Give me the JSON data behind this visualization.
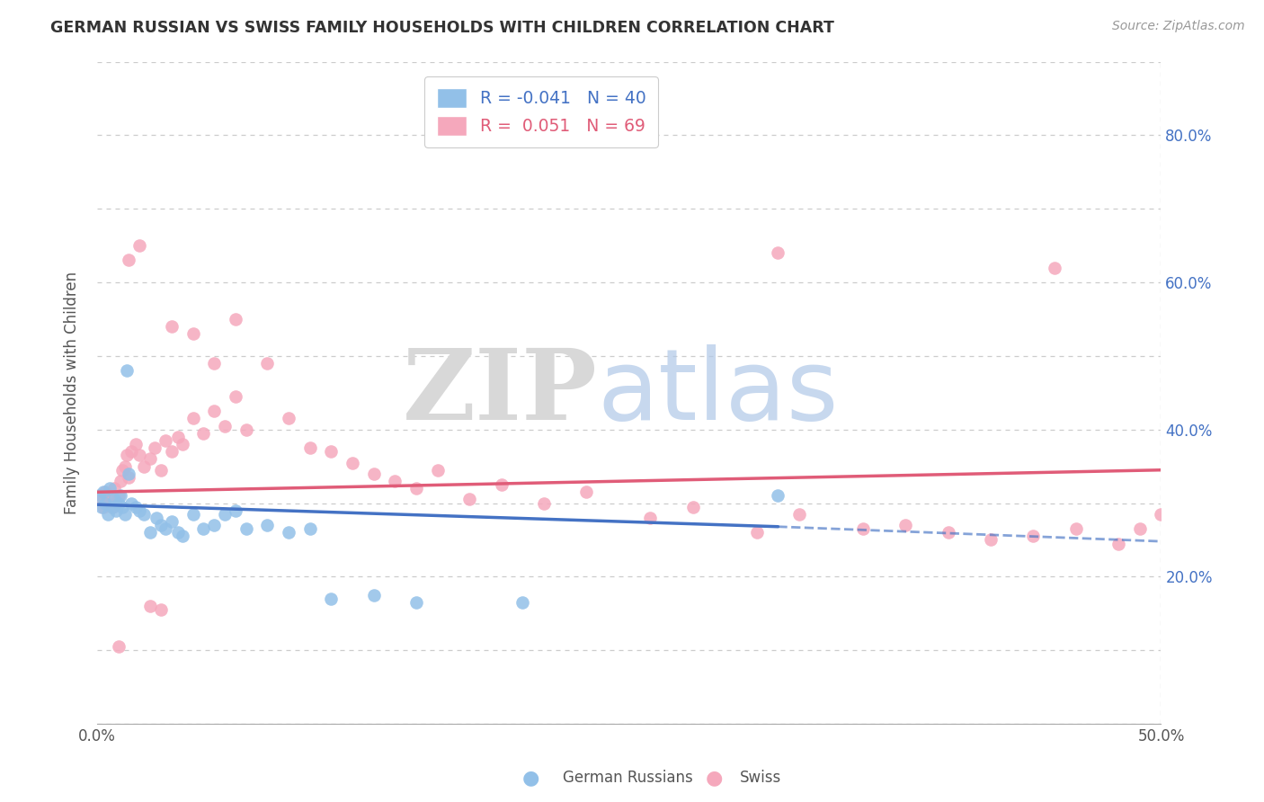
{
  "title": "GERMAN RUSSIAN VS SWISS FAMILY HOUSEHOLDS WITH CHILDREN CORRELATION CHART",
  "source": "Source: ZipAtlas.com",
  "ylabel": "Family Households with Children",
  "xlim": [
    0.0,
    0.5
  ],
  "ylim": [
    0.0,
    0.9
  ],
  "y_tick_positions": [
    0.0,
    0.1,
    0.2,
    0.3,
    0.4,
    0.5,
    0.6,
    0.7,
    0.8,
    0.9
  ],
  "y_tick_labels_right": [
    "",
    "",
    "20.0%",
    "",
    "40.0%",
    "",
    "60.0%",
    "",
    "80.0%",
    ""
  ],
  "x_tick_positions": [
    0.0,
    0.1,
    0.2,
    0.3,
    0.4,
    0.5
  ],
  "x_tick_labels": [
    "0.0%",
    "",
    "",
    "",
    "",
    "50.0%"
  ],
  "legend_r_blue": "-0.041",
  "legend_n_blue": "40",
  "legend_r_pink": "0.051",
  "legend_n_pink": "69",
  "blue_color": "#92c0e8",
  "pink_color": "#f5a8bc",
  "trend_blue_color": "#4472C4",
  "trend_pink_color": "#E05C78",
  "german_russian_x": [
    0.001,
    0.002,
    0.003,
    0.004,
    0.005,
    0.006,
    0.007,
    0.008,
    0.009,
    0.01,
    0.011,
    0.012,
    0.013,
    0.014,
    0.015,
    0.016,
    0.018,
    0.02,
    0.022,
    0.025,
    0.028,
    0.03,
    0.032,
    0.035,
    0.038,
    0.04,
    0.045,
    0.05,
    0.055,
    0.06,
    0.065,
    0.07,
    0.08,
    0.09,
    0.1,
    0.11,
    0.13,
    0.15,
    0.2,
    0.32
  ],
  "german_russian_y": [
    0.31,
    0.295,
    0.315,
    0.3,
    0.285,
    0.32,
    0.295,
    0.305,
    0.29,
    0.3,
    0.31,
    0.295,
    0.285,
    0.48,
    0.34,
    0.3,
    0.295,
    0.29,
    0.285,
    0.26,
    0.28,
    0.27,
    0.265,
    0.275,
    0.26,
    0.255,
    0.285,
    0.265,
    0.27,
    0.285,
    0.29,
    0.265,
    0.27,
    0.26,
    0.265,
    0.17,
    0.175,
    0.165,
    0.165,
    0.31
  ],
  "swiss_x": [
    0.001,
    0.002,
    0.003,
    0.004,
    0.005,
    0.006,
    0.007,
    0.008,
    0.009,
    0.01,
    0.011,
    0.012,
    0.013,
    0.014,
    0.015,
    0.016,
    0.018,
    0.02,
    0.022,
    0.025,
    0.027,
    0.03,
    0.032,
    0.035,
    0.038,
    0.04,
    0.045,
    0.05,
    0.055,
    0.06,
    0.065,
    0.07,
    0.08,
    0.09,
    0.1,
    0.11,
    0.12,
    0.13,
    0.14,
    0.15,
    0.16,
    0.175,
    0.19,
    0.21,
    0.23,
    0.26,
    0.28,
    0.31,
    0.33,
    0.36,
    0.38,
    0.4,
    0.42,
    0.44,
    0.46,
    0.48,
    0.49,
    0.5,
    0.03,
    0.025,
    0.02,
    0.015,
    0.01,
    0.035,
    0.045,
    0.055,
    0.065,
    0.32,
    0.45
  ],
  "swiss_y": [
    0.305,
    0.31,
    0.295,
    0.315,
    0.3,
    0.31,
    0.295,
    0.32,
    0.3,
    0.31,
    0.33,
    0.345,
    0.35,
    0.365,
    0.335,
    0.37,
    0.38,
    0.365,
    0.35,
    0.36,
    0.375,
    0.345,
    0.385,
    0.37,
    0.39,
    0.38,
    0.415,
    0.395,
    0.425,
    0.405,
    0.445,
    0.4,
    0.49,
    0.415,
    0.375,
    0.37,
    0.355,
    0.34,
    0.33,
    0.32,
    0.345,
    0.305,
    0.325,
    0.3,
    0.315,
    0.28,
    0.295,
    0.26,
    0.285,
    0.265,
    0.27,
    0.26,
    0.25,
    0.255,
    0.265,
    0.245,
    0.265,
    0.285,
    0.155,
    0.16,
    0.65,
    0.63,
    0.105,
    0.54,
    0.53,
    0.49,
    0.55,
    0.64,
    0.62
  ]
}
